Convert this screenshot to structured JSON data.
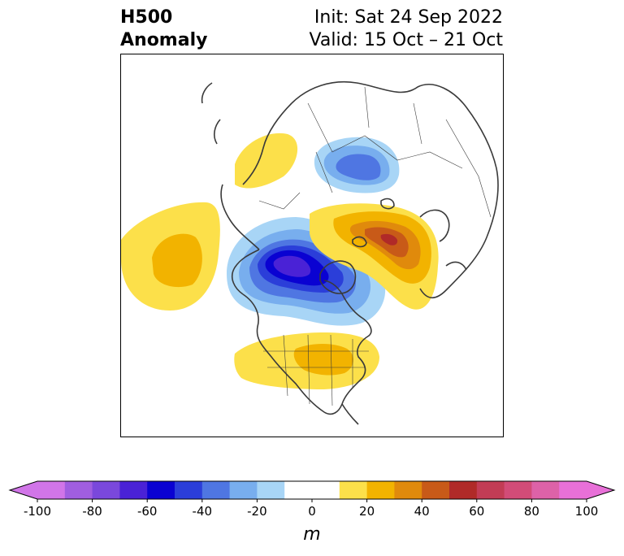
{
  "header": {
    "title_line1": "H500",
    "title_line2": "Anomaly",
    "init": "Init: Sat 24 Sep 2022",
    "valid": "Valid: 15 Oct – 21 Oct"
  },
  "map": {
    "field": "500 hPa height anomaly",
    "projection": "north-polar stereographic",
    "regions": [
      {
        "name": "western-pacific-ridge",
        "sign": "positive",
        "peak_value": 30
      },
      {
        "name": "aleutian-ridge",
        "sign": "positive",
        "peak_value": 20
      },
      {
        "name": "arctic-trough",
        "sign": "negative",
        "peak_value": -70
      },
      {
        "name": "siberian-trough",
        "sign": "negative",
        "peak_value": -50
      },
      {
        "name": "eurasian-ridge",
        "sign": "positive",
        "peak_value": 70
      },
      {
        "name": "north-america-ridge",
        "sign": "positive",
        "peak_value": 30
      }
    ]
  },
  "colorbar": {
    "label": "m",
    "min": -100,
    "max": 100,
    "step": 10,
    "extend": "both",
    "tick_labels": [
      "-100",
      "-80",
      "-60",
      "-40",
      "-20",
      "0",
      "20",
      "40",
      "60",
      "80",
      "100"
    ],
    "colors": [
      "#d175e8",
      "#a05ee0",
      "#7a48dc",
      "#4a22d6",
      "#0a02d2",
      "#2b3ed9",
      "#4f76e2",
      "#78aeee",
      "#a8d5f6",
      "#ffffff",
      "#ffffff",
      "#fce04a",
      "#f2b300",
      "#e08a0c",
      "#c85a18",
      "#b02a28",
      "#c23c55",
      "#d24c78",
      "#dd62a8",
      "#e870d8"
    ],
    "extend_low_color": "#d175e8",
    "extend_high_color": "#e870d8"
  },
  "colors": {
    "coastline": "#3a3a3a",
    "frame": "#000000"
  }
}
